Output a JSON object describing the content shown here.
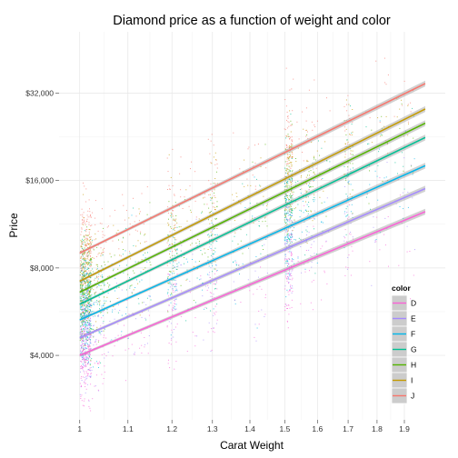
{
  "chart_data": {
    "type": "scatter",
    "title": "Diamond price as a function of weight and color",
    "xlabel": "Carat Weight",
    "ylabel": "Price",
    "x_scale": "log10",
    "y_scale": "log10",
    "xlim": [
      0.96,
      2.06
    ],
    "ylim": [
      2400,
      52000
    ],
    "x_ticks": [
      {
        "value": 1.0,
        "label": "1"
      },
      {
        "value": 1.1,
        "label": "1.1"
      },
      {
        "value": 1.2,
        "label": "1.2"
      },
      {
        "value": 1.3,
        "label": "1.3"
      },
      {
        "value": 1.4,
        "label": "1.4"
      },
      {
        "value": 1.5,
        "label": "1.5"
      },
      {
        "value": 1.6,
        "label": "1.6"
      },
      {
        "value": 1.7,
        "label": "1.7"
      },
      {
        "value": 1.8,
        "label": "1.8"
      },
      {
        "value": 1.9,
        "label": "1.9"
      }
    ],
    "y_ticks": [
      {
        "value": 4000,
        "label": "$4,000"
      },
      {
        "value": 8000,
        "label": "$8,000"
      },
      {
        "value": 16000,
        "label": "$16,000"
      },
      {
        "value": 32000,
        "label": "$32,000"
      }
    ],
    "grid": true,
    "legend": {
      "title": "color",
      "position": "bottom-right"
    },
    "series": [
      {
        "name": "D",
        "color": "#F8766D",
        "fit": {
          "x": [
            1.0,
            1.98
          ],
          "y": [
            9000,
            34500
          ]
        }
      },
      {
        "name": "E",
        "color": "#C49A00",
        "fit": {
          "x": [
            1.0,
            1.98
          ],
          "y": [
            7200,
            28200
          ]
        }
      },
      {
        "name": "F",
        "color": "#53B400",
        "fit": {
          "x": [
            1.0,
            1.98
          ],
          "y": [
            6600,
            25200
          ]
        }
      },
      {
        "name": "G",
        "color": "#00C094",
        "fit": {
          "x": [
            1.0,
            1.98
          ],
          "y": [
            6000,
            22500
          ]
        }
      },
      {
        "name": "H",
        "color": "#00B6EB",
        "fit": {
          "x": [
            1.0,
            1.98
          ],
          "y": [
            5300,
            18000
          ]
        }
      },
      {
        "name": "I",
        "color": "#A58AFF",
        "fit": {
          "x": [
            1.0,
            1.98
          ],
          "y": [
            4600,
            15000
          ]
        }
      },
      {
        "name": "J",
        "color": "#FB61D7",
        "fit": {
          "x": [
            1.0,
            1.98
          ],
          "y": [
            4000,
            12500
          ]
        }
      }
    ]
  }
}
